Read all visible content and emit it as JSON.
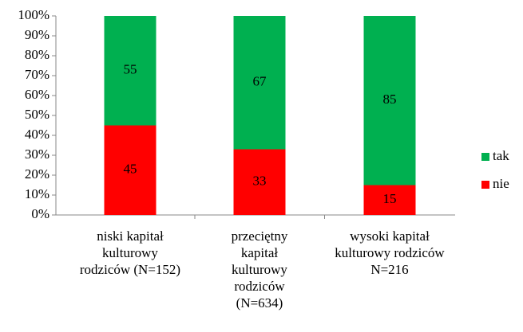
{
  "chart_data": {
    "type": "stacked_bar",
    "categories": [
      "niski kapitał kulturowy rodziców (N=152)",
      "przeciętny kapitał kulturowy rodziców (N=634)",
      "wysoki kapitał kulturowy rodziców N=216"
    ],
    "series": [
      {
        "name": "nie",
        "color": "#ff0000",
        "values": [
          45,
          33,
          15
        ]
      },
      {
        "name": "tak",
        "color": "#00b050",
        "values": [
          55,
          67,
          85
        ]
      }
    ],
    "ylim": [
      0,
      100
    ],
    "yticks": [
      {
        "value": 0,
        "label": "0%"
      },
      {
        "value": 10,
        "label": "10%"
      },
      {
        "value": 20,
        "label": "20%"
      },
      {
        "value": 30,
        "label": "30%"
      },
      {
        "value": 40,
        "label": "40%"
      },
      {
        "value": 50,
        "label": "50%"
      },
      {
        "value": 60,
        "label": "60%"
      },
      {
        "value": 70,
        "label": "70%"
      },
      {
        "value": 80,
        "label": "80%"
      },
      {
        "value": 90,
        "label": "90%"
      },
      {
        "value": 100,
        "label": "100%"
      }
    ],
    "legend": "right"
  }
}
